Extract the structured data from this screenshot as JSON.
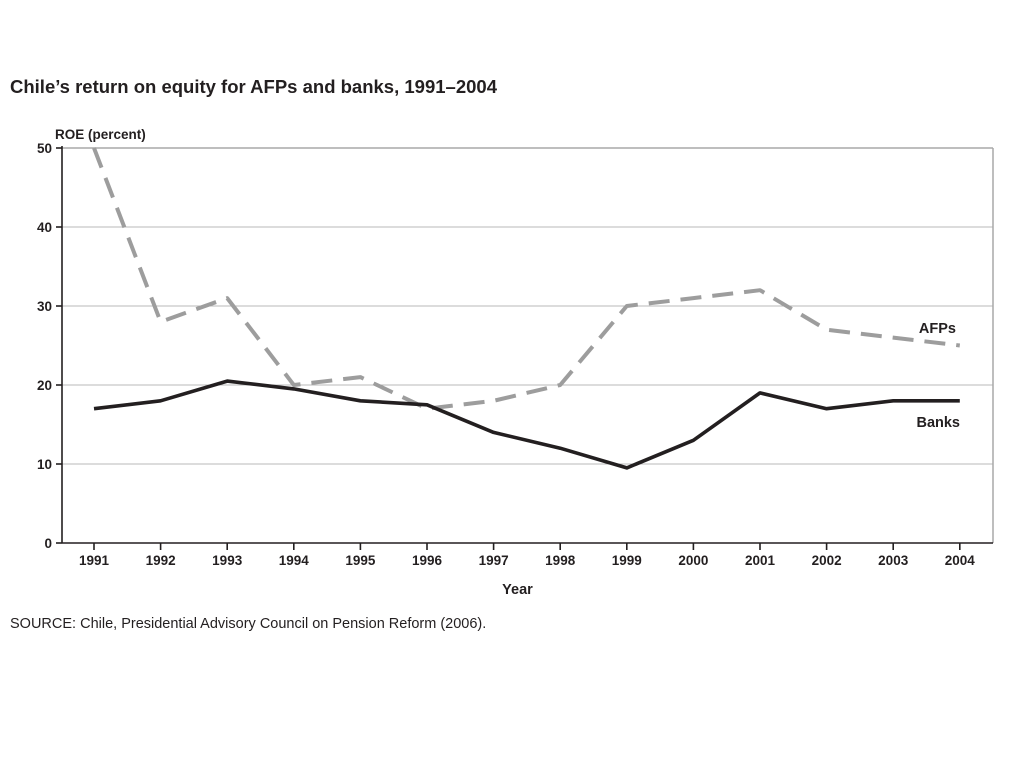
{
  "chart_data": {
    "type": "line",
    "title": "Chile’s return on equity for AFPs and banks, 1991–2004",
    "ylabel": "ROE (percent)",
    "xlabel": "Year",
    "x": [
      "1991",
      "1992",
      "1993",
      "1994",
      "1995",
      "1996",
      "1997",
      "1998",
      "1999",
      "2000",
      "2001",
      "2002",
      "2003",
      "2004"
    ],
    "yticks": [
      "0",
      "10",
      "20",
      "30",
      "40",
      "50"
    ],
    "ylim": [
      0,
      50
    ],
    "grid": true,
    "series": [
      {
        "name": "AFPs",
        "style": "dashed",
        "color": "#9d9d9d",
        "values": [
          50,
          28,
          31,
          20,
          21,
          17,
          18,
          20,
          30,
          31,
          32,
          27,
          26,
          25
        ]
      },
      {
        "name": "Banks",
        "style": "solid",
        "color": "#231f20",
        "values": [
          17,
          18,
          20.5,
          19.5,
          18,
          17.5,
          14,
          12,
          9.5,
          13,
          19,
          17,
          18,
          18
        ]
      }
    ]
  },
  "source": "SOURCE: Chile, Presidential Advisory Council on Pension Reform (2006)."
}
